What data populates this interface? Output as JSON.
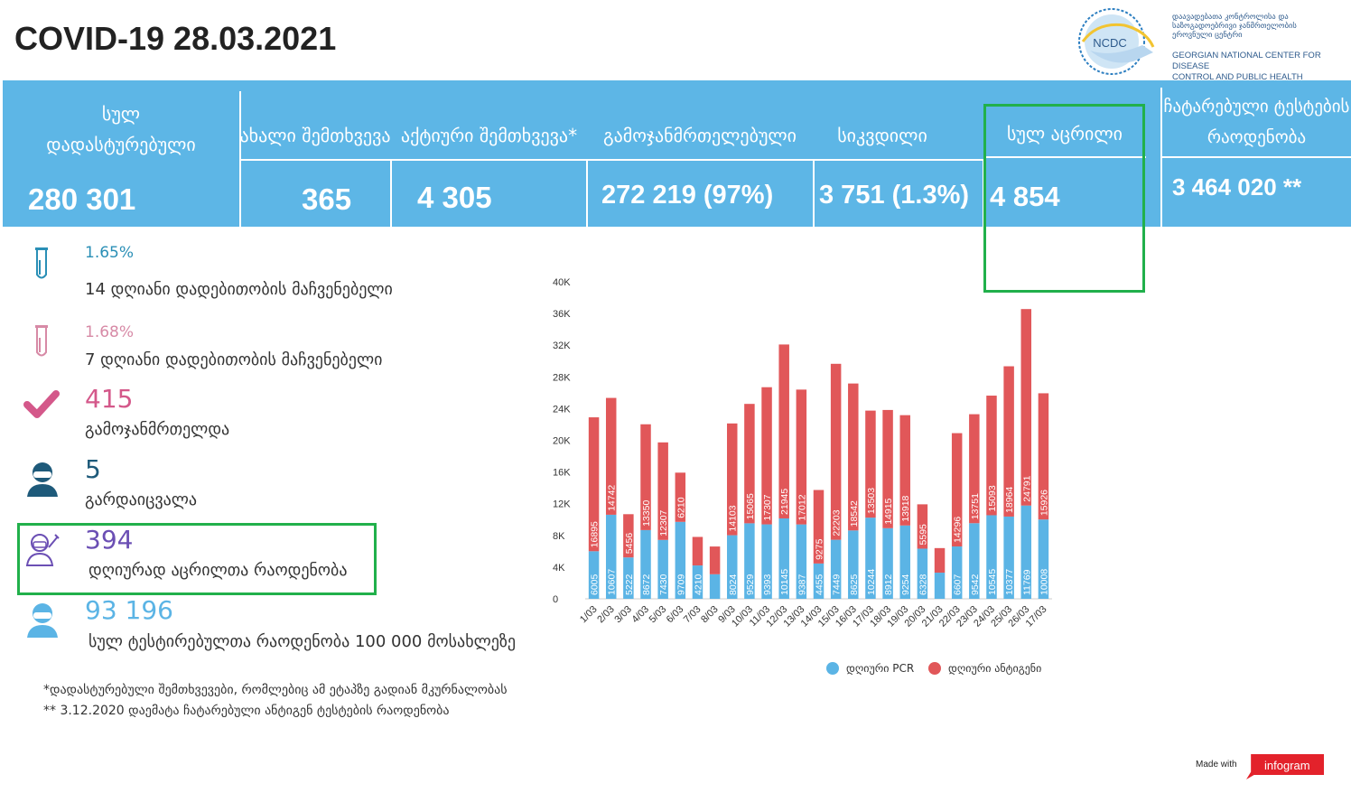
{
  "title": "COVID-19 28.03.2021",
  "logo": {
    "abbr": "NCDC",
    "name_ka_1": "დაავადებათა კონტროლისა და",
    "name_ka_2": "საზოგადოებრივი ჯანმრთელობის",
    "name_ka_3": "ეროვნული ცენტრი",
    "name_en_1": "GEORGIAN NATIONAL CENTER FOR DISEASE",
    "name_en_2": "CONTROL AND PUBLIC HEALTH"
  },
  "banner": {
    "total_confirmed_label_1": "სულ",
    "total_confirmed_label_2": "დადასტურებული",
    "total_confirmed": "280 301",
    "new_cases_label": "ახალი შემთხვევა",
    "new_cases": "365",
    "active_label": "აქტიური შემთხვევა*",
    "active": "4 305",
    "recovered_label": "გამოჯანმრთელებული",
    "recovered": "272 219  (97%)",
    "deaths_label": "სიკვდილი",
    "deaths": "3 751 (1.3%)",
    "vaccinated_label": "სულ აცრილი",
    "vaccinated": "4 854",
    "tests_label_1": "ჩატარებული ტესტების",
    "tests_label_2": "რაოდენობა",
    "tests": "3 464 020 **"
  },
  "stats": {
    "positivity_14_value": "1.65%",
    "positivity_14_label": "14  დღიანი დადებითობის მაჩვენებელი",
    "positivity_7_value": "1.68%",
    "positivity_7_label": "7 დღიანი დადებითობის მაჩვენებელი",
    "recovered_today_value": "415",
    "recovered_today_label": "გამოჯანმრთელდა",
    "deaths_today_value": "5",
    "deaths_today_label": "გარდაიცვალა",
    "vaccinated_today_value": "394",
    "vaccinated_today_label": "დღიურად აცრილთა რაოდენობა",
    "tested_per_100k_value": "93 196",
    "tested_per_100k_label": "სულ ტესტირებულთა რაოდენობა 100 000 მოსახლეზე"
  },
  "footnotes": {
    "note_1": "*დადასტურებული შემთხვევები, რომლებიც ამ ეტაპზე გადიან მკურნალობას",
    "note_2": "** 3.12.2020 დაემატა ჩატარებული ანტიგენ ტესტების რაოდენობა"
  },
  "colors": {
    "banner": "#5db6e6",
    "pcr": "#5bb4e5",
    "antigen": "#e15759",
    "highlight": "#21b04b",
    "teal": "#2a8fb6",
    "pink": "#d4588a",
    "purple": "#6b4fb4"
  },
  "chart_data": {
    "type": "bar",
    "stacked": true,
    "categories": [
      "1/03",
      "2/03",
      "3/03",
      "4/03",
      "5/03",
      "6/03",
      "7/03",
      "8/03",
      "9/03",
      "10/03",
      "11/03",
      "12/03",
      "13/03",
      "14/03",
      "15/03",
      "16/03",
      "17/03",
      "18/03",
      "19/03",
      "20/03",
      "21/03",
      "22/03",
      "23/03",
      "24/03",
      "25/03",
      "26/03",
      "17/03"
    ],
    "series": [
      {
        "name": "დღიური PCR",
        "color": "#5bb4e5",
        "values": [
          6005,
          10607,
          5222,
          8672,
          7430,
          9709,
          4210,
          3100,
          8024,
          9529,
          9393,
          10145,
          9387,
          4455,
          7449,
          8625,
          10244,
          8912,
          9254,
          6328,
          3300,
          6607,
          9542,
          10545,
          10377,
          11769,
          10008
        ],
        "labels": [
          "6005",
          "10607",
          "5222",
          "8672",
          "7430",
          "9709",
          "4210",
          "",
          "8024",
          "9529",
          "9393",
          "10145",
          "9387",
          "4455",
          "7449",
          "8625",
          "10244",
          "8912",
          "9254",
          "6328",
          "",
          "6607",
          "9542",
          "10545",
          "10377",
          "11769",
          "10008"
        ]
      },
      {
        "name": "დღიური ანტიგენი",
        "color": "#e15759",
        "values": [
          16895,
          14742,
          5456,
          13350,
          12307,
          6210,
          3600,
          3500,
          14103,
          15065,
          17307,
          21945,
          17012,
          9275,
          22203,
          18542,
          13503,
          14915,
          13918,
          5595,
          3100,
          14296,
          13751,
          15093,
          18964,
          24791,
          15926
        ],
        "labels": [
          "16895",
          "14742",
          "5456",
          "13350",
          "12307",
          "6210",
          "",
          "",
          "14103",
          "15065",
          "17307",
          "21945",
          "17012",
          "9275",
          "22203",
          "18542",
          "13503",
          "14915",
          "13918",
          "5595",
          "",
          "14296",
          "13751",
          "15093",
          "18964",
          "24791",
          "15926"
        ]
      }
    ],
    "y_ticks": [
      "0",
      "4K",
      "8K",
      "12K",
      "16K",
      "20K",
      "24K",
      "28K",
      "32K",
      "36K",
      "40K"
    ],
    "ylim": [
      0,
      40000
    ],
    "legend_position": "bottom"
  }
}
